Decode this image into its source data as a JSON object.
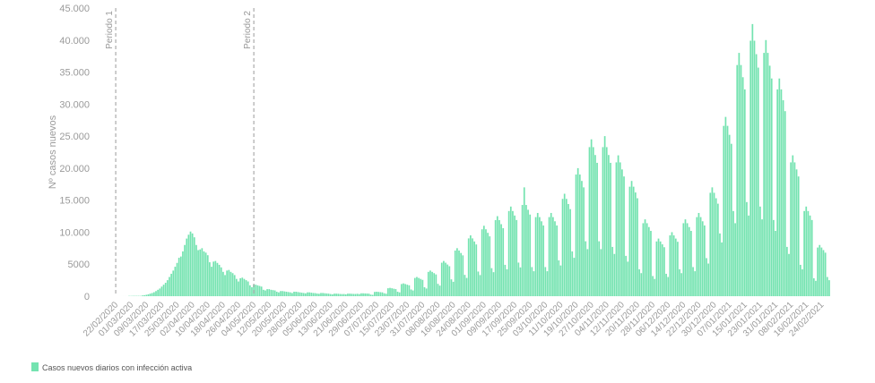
{
  "chart_data": {
    "type": "bar",
    "y_label": "Nº casos nuevos",
    "ylim": [
      0,
      45000
    ],
    "yticks": [
      0,
      5000,
      {
        "value": 10000,
        "label": "10.000"
      },
      {
        "value": 15000,
        "label": "15.000"
      },
      {
        "value": 20000,
        "label": "20.000"
      },
      {
        "value": 25000,
        "label": "25.000"
      },
      {
        "value": 30000,
        "label": "30.000"
      },
      {
        "value": 35000,
        "label": "35.000"
      },
      {
        "value": 40000,
        "label": "40.000"
      },
      {
        "value": 45000,
        "label": "45.000"
      }
    ],
    "grid": false,
    "legend": "bottom-left",
    "annotations": [
      {
        "text": "Periodo 1",
        "category": "22/02/2020"
      },
      {
        "text": "Periodo 2",
        "category": "04/05/2020"
      }
    ],
    "categories": [
      "22/02/2020",
      null,
      null,
      null,
      null,
      null,
      null,
      null,
      "01/03/2020",
      null,
      null,
      null,
      null,
      null,
      null,
      null,
      "09/03/2020",
      null,
      null,
      null,
      null,
      null,
      null,
      null,
      "17/03/2020",
      null,
      null,
      null,
      null,
      null,
      null,
      null,
      "25/03/2020",
      null,
      null,
      null,
      null,
      null,
      null,
      null,
      "02/04/2020",
      null,
      null,
      null,
      null,
      null,
      null,
      null,
      "10/04/2020",
      null,
      null,
      null,
      null,
      null,
      null,
      null,
      "18/04/2020",
      null,
      null,
      null,
      null,
      null,
      null,
      null,
      "26/04/2020",
      null,
      null,
      null,
      null,
      null,
      null,
      null,
      "04/05/2020",
      null,
      null,
      null,
      null,
      null,
      null,
      null,
      "12/05/2020",
      null,
      null,
      null,
      null,
      null,
      null,
      null,
      "20/05/2020",
      null,
      null,
      null,
      null,
      null,
      null,
      null,
      "28/05/2020",
      null,
      null,
      null,
      null,
      null,
      null,
      null,
      "05/06/2020",
      null,
      null,
      null,
      null,
      null,
      null,
      null,
      "13/06/2020",
      null,
      null,
      null,
      null,
      null,
      null,
      null,
      "21/06/2020",
      null,
      null,
      null,
      null,
      null,
      null,
      null,
      "29/06/2020",
      null,
      null,
      null,
      null,
      null,
      null,
      null,
      "07/07/2020",
      null,
      null,
      null,
      null,
      null,
      null,
      null,
      "15/07/2020",
      null,
      null,
      null,
      null,
      null,
      null,
      null,
      "23/07/2020",
      null,
      null,
      null,
      null,
      null,
      null,
      null,
      "31/07/2020",
      null,
      null,
      null,
      null,
      null,
      null,
      null,
      "08/08/2020",
      null,
      null,
      null,
      null,
      null,
      null,
      null,
      "16/08/2020",
      null,
      null,
      null,
      null,
      null,
      null,
      null,
      "24/08/2020",
      null,
      null,
      null,
      null,
      null,
      null,
      null,
      "01/09/2020",
      null,
      null,
      null,
      null,
      null,
      null,
      null,
      "09/09/2020",
      null,
      null,
      null,
      null,
      null,
      null,
      null,
      "17/09/2020",
      null,
      null,
      null,
      null,
      null,
      null,
      null,
      "25/09/2020",
      null,
      null,
      null,
      null,
      null,
      null,
      null,
      "03/10/2020",
      null,
      null,
      null,
      null,
      null,
      null,
      null,
      "11/10/2020",
      null,
      null,
      null,
      null,
      null,
      null,
      null,
      "19/10/2020",
      null,
      null,
      null,
      null,
      null,
      null,
      null,
      "27/10/2020",
      null,
      null,
      null,
      null,
      null,
      null,
      null,
      "04/11/2020",
      null,
      null,
      null,
      null,
      null,
      null,
      null,
      "12/11/2020",
      null,
      null,
      null,
      null,
      null,
      null,
      null,
      "20/11/2020",
      null,
      null,
      null,
      null,
      null,
      null,
      null,
      "28/11/2020",
      null,
      null,
      null,
      null,
      null,
      null,
      null,
      "06/12/2020",
      null,
      null,
      null,
      null,
      null,
      null,
      null,
      "14/12/2020",
      null,
      null,
      null,
      null,
      null,
      null,
      null,
      "22/12/2020",
      null,
      null,
      null,
      null,
      null,
      null,
      null,
      "30/12/2020",
      null,
      null,
      null,
      null,
      null,
      null,
      null,
      "07/01/2021",
      null,
      null,
      null,
      null,
      null,
      null,
      null,
      "15/01/2021",
      null,
      null,
      null,
      null,
      null,
      null,
      null,
      "23/01/2021",
      null,
      null,
      null,
      null,
      null,
      null,
      null,
      "31/01/2021",
      null,
      null,
      null,
      null,
      null,
      null,
      null,
      "08/02/2021",
      null,
      null,
      null,
      null,
      null,
      null,
      null,
      "16/02/2021",
      null,
      null,
      null,
      null,
      null,
      null,
      null,
      "24/02/2021",
      null,
      null,
      null,
      null
    ],
    "series": [
      {
        "name": "Casos nuevos diarios con infección activa",
        "color": "#74e3b0",
        "values": [
          0,
          0,
          1,
          2,
          3,
          3,
          2,
          40,
          35,
          50,
          50,
          50,
          50,
          45,
          120,
          160,
          220,
          300,
          400,
          500,
          620,
          800,
          1000,
          1200,
          1500,
          1800,
          2100,
          2500,
          3000,
          3500,
          4000,
          4600,
          5200,
          6000,
          6200,
          7000,
          8000,
          9000,
          9600,
          10100,
          9800,
          9200,
          8000,
          7200,
          7300,
          7500,
          7000,
          6800,
          6400,
          5300,
          4600,
          5400,
          5500,
          5200,
          4900,
          4500,
          3800,
          3300,
          4000,
          4100,
          3800,
          3600,
          3300,
          2700,
          2300,
          2800,
          2900,
          2700,
          2500,
          2300,
          1700,
          1400,
          1800,
          1800,
          1700,
          1600,
          1500,
          1000,
          900,
          1100,
          1100,
          1000,
          950,
          900,
          700,
          600,
          800,
          800,
          750,
          700,
          650,
          600,
          500,
          700,
          700,
          650,
          600,
          550,
          500,
          450,
          600,
          600,
          550,
          500,
          480,
          420,
          380,
          500,
          500,
          460,
          430,
          400,
          340,
          300,
          400,
          400,
          380,
          350,
          330,
          340,
          300,
          400,
          400,
          380,
          360,
          350,
          380,
          330,
          450,
          450,
          430,
          420,
          400,
          250,
          210,
          670,
          700,
          670,
          630,
          600,
          460,
          390,
          1240,
          1300,
          1240,
          1170,
          1110,
          700,
          600,
          1900,
          2000,
          1900,
          1800,
          1700,
          1050,
          900,
          2850,
          3000,
          2850,
          2700,
          2550,
          1400,
          1200,
          3800,
          4000,
          3800,
          3600,
          3400,
          1930,
          1650,
          5230,
          5500,
          5230,
          4950,
          4680,
          2630,
          2250,
          7130,
          7500,
          7130,
          6750,
          6380,
          3330,
          2850,
          9030,
          9500,
          9030,
          8550,
          8080,
          3850,
          3300,
          10450,
          11000,
          10450,
          9900,
          9350,
          4380,
          3750,
          11880,
          12500,
          11880,
          11250,
          10630,
          4900,
          4200,
          13300,
          14000,
          13300,
          12600,
          11900,
          5250,
          4500,
          14250,
          17000,
          14250,
          13500,
          12750,
          4550,
          3900,
          12350,
          13000,
          12350,
          11700,
          11050,
          4550,
          3900,
          12350,
          13000,
          12350,
          11700,
          11050,
          5600,
          4800,
          15200,
          16000,
          15200,
          14400,
          13600,
          7000,
          6000,
          19000,
          20000,
          19000,
          18000,
          17000,
          8580,
          7350,
          23280,
          24500,
          23280,
          22050,
          20830,
          8580,
          7350,
          23280,
          25000,
          23280,
          22050,
          20830,
          7700,
          6600,
          20900,
          22000,
          20900,
          19800,
          18700,
          6300,
          5400,
          17100,
          18000,
          17100,
          16200,
          15300,
          4200,
          3600,
          11400,
          12000,
          11400,
          10800,
          10200,
          3150,
          2700,
          8550,
          9000,
          8550,
          8100,
          7650,
          3500,
          3000,
          9500,
          10000,
          9500,
          9000,
          8500,
          4200,
          3600,
          11400,
          12000,
          11400,
          10800,
          10200,
          4550,
          3900,
          12350,
          13000,
          12350,
          11700,
          11050,
          5950,
          5100,
          16150,
          17000,
          16150,
          15300,
          14450,
          9800,
          8400,
          26600,
          28000,
          26600,
          25200,
          23800,
          13300,
          11400,
          36100,
          38000,
          36100,
          34200,
          32300,
          14700,
          12600,
          39900,
          42500,
          39900,
          37800,
          35700,
          14000,
          12000,
          38000,
          40000,
          38000,
          36000,
          34000,
          11900,
          10200,
          32300,
          34000,
          32300,
          30600,
          28900,
          7700,
          6600,
          20900,
          22000,
          20900,
          19800,
          18700,
          4900,
          4200,
          13300,
          14000,
          13300,
          12600,
          11900,
          2800,
          2400,
          7600,
          8000,
          7600,
          7200,
          6800,
          3000,
          2500
        ]
      }
    ]
  }
}
